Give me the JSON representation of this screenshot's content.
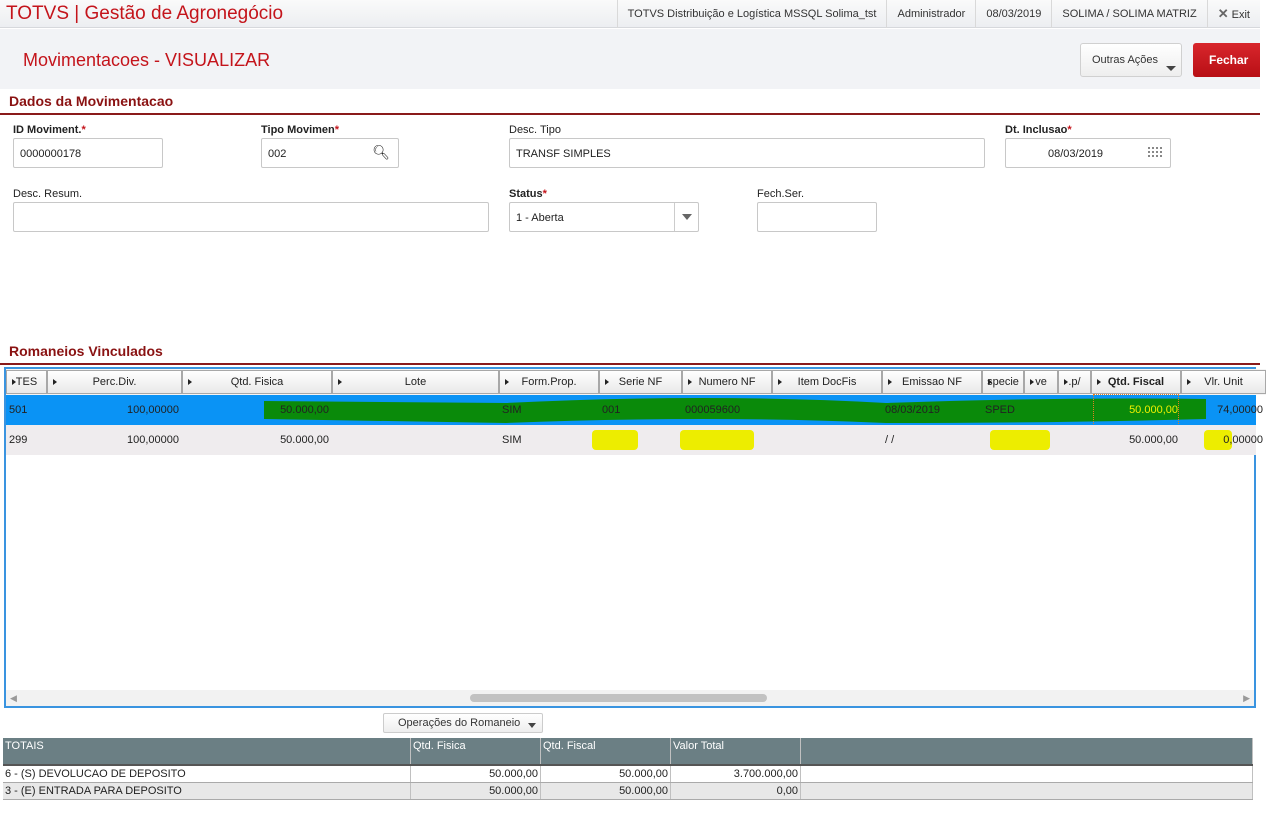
{
  "app": {
    "title": "TOTVS | Gestão de Agronegócio",
    "env": "TOTVS Distribuição e Logística MSSQL Solima_tst",
    "user": "Administrador",
    "date": "08/03/2019",
    "company": "SOLIMA / SOLIMA MATRIZ",
    "exit_label": "Exit"
  },
  "page": {
    "title": "Movimentacoes - VISUALIZAR",
    "outras_acoes": "Outras Ações",
    "fechar": "Fechar"
  },
  "dados": {
    "section": "Dados da Movimentacao",
    "id_label": "ID Moviment.",
    "id_value": "0000000178",
    "tipo_label": "Tipo Movimen",
    "tipo_value": "002",
    "desc_tipo_label": "Desc. Tipo",
    "desc_tipo_value": "TRANSF SIMPLES",
    "dt_label": "Dt. Inclusao",
    "dt_value": "08/03/2019",
    "desc_resum_label": "Desc. Resum.",
    "desc_resum_value": "",
    "status_label": "Status",
    "status_value": "1 - Aberta",
    "fech_label": "Fech.Ser.",
    "fech_value": "",
    "required_mark": "*"
  },
  "romaneios": {
    "section": "Romaneios Vinculados",
    "columns": [
      "TES",
      "Perc.Div.",
      "Qtd. Fisica",
      "Lote",
      "Form.Prop.",
      "Serie NF",
      "Numero NF",
      "Item DocFis",
      "Emissao NF",
      "specie",
      "ve",
      ".p/",
      "Qtd. Fiscal",
      "Vlr. Unit"
    ],
    "rows": [
      [
        "501",
        "100,00000",
        "50.000,00",
        "",
        "SIM",
        "001",
        "000059600",
        "",
        "08/03/2019",
        "SPED",
        "",
        "",
        "50.000,00",
        "74,00000"
      ],
      [
        "299",
        "100,00000",
        "50.000,00",
        "",
        "SIM",
        "",
        "",
        "",
        "/ /",
        "",
        "",
        "",
        "50.000,00",
        "0,00000"
      ]
    ],
    "selected_row": 0,
    "colors": {
      "selection": "#0a93f5",
      "redaction_green": "#0a8a0a",
      "redaction_yellow": "#eded00"
    }
  },
  "operacoes_label": "Operações do Romaneio",
  "totais": {
    "columns": [
      "TOTAIS",
      "Qtd. Fisica",
      "Qtd. Fiscal",
      "Valor Total"
    ],
    "rows": [
      [
        "6 - (S) DEVOLUCAO DE DEPOSITO",
        "50.000,00",
        "50.000,00",
        "3.700.000,00"
      ],
      [
        "3 - (E) ENTRADA PARA DEPOSITO",
        "50.000,00",
        "50.000,00",
        "0,00"
      ]
    ]
  }
}
